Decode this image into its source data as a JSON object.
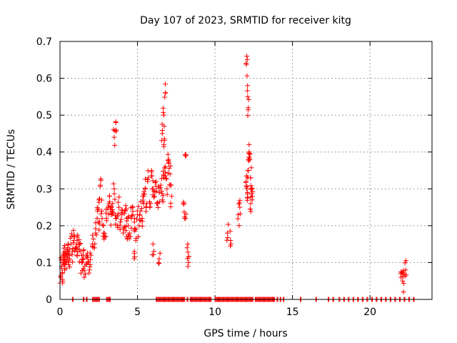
{
  "chart_data": {
    "type": "scatter",
    "title": "Day 107 of 2023, SRMTID for receiver kitg",
    "xlabel": "GPS time / hours",
    "ylabel": "SRMTID / TECUs",
    "xlim": [
      0,
      24
    ],
    "ylim": [
      0,
      0.7
    ],
    "xticks": [
      0,
      5,
      10,
      15,
      20
    ],
    "xtick_labels": [
      "0",
      "5",
      "10",
      "15",
      "20"
    ],
    "yticks": [
      0,
      0.1,
      0.2,
      0.3,
      0.4,
      0.5,
      0.6,
      0.7
    ],
    "ytick_labels": [
      "0",
      "0.1",
      "0.2",
      "0.3",
      "0.4",
      "0.5",
      "0.6",
      "0.7"
    ],
    "grid": true,
    "marker": "+",
    "series": [
      {
        "name": "SRMTID",
        "color": "#ff0000",
        "x": [
          0.05,
          0.1,
          0.15,
          0.2,
          0.25,
          0.3,
          0.35,
          0.4,
          0.45,
          0.5,
          0.55,
          0.6,
          0.7,
          0.8,
          0.9,
          1.0,
          1.1,
          1.2,
          1.3,
          1.4,
          1.5,
          1.6,
          1.7,
          1.8,
          1.9,
          2.0,
          2.1,
          2.2,
          2.3,
          2.4,
          2.5,
          2.6,
          2.7,
          2.8,
          2.9,
          3.0,
          3.1,
          3.2,
          3.3,
          3.4,
          3.5,
          3.6,
          3.7,
          3.8,
          3.9,
          4.0,
          4.1,
          4.2,
          4.3,
          4.4,
          4.5,
          4.6,
          4.7,
          4.8,
          4.9,
          5.0,
          5.1,
          5.2,
          5.3,
          5.4,
          5.5,
          5.6,
          5.7,
          5.8,
          5.9,
          6.0,
          6.1,
          6.2,
          6.3,
          6.4,
          6.5,
          6.6,
          6.7,
          6.8,
          6.9,
          7.0,
          7.1,
          7.2,
          8.0,
          8.1,
          8.2,
          8.3,
          10.8,
          11.0,
          11.5,
          11.6,
          12.0,
          12.05,
          12.1,
          12.15,
          12.2,
          12.25,
          12.3,
          12.35,
          12.4,
          22.0,
          22.1,
          22.2,
          22.3,
          3.5,
          3.6,
          6.7,
          6.8,
          12.05,
          12.1,
          12.15,
          12.2,
          6.6,
          6.7,
          0.3,
          0.6,
          1.1,
          1.5,
          2.5,
          3.3,
          4.3,
          4.8,
          5.4,
          6.0,
          6.4,
          7.0,
          8.1,
          12.3
        ],
        "y": [
          0.06,
          0.09,
          0.07,
          0.1,
          0.12,
          0.11,
          0.13,
          0.1,
          0.12,
          0.14,
          0.13,
          0.11,
          0.15,
          0.13,
          0.16,
          0.14,
          0.12,
          0.15,
          0.13,
          0.1,
          0.11,
          0.09,
          0.12,
          0.1,
          0.08,
          0.12,
          0.15,
          0.14,
          0.18,
          0.22,
          0.27,
          0.31,
          0.24,
          0.2,
          0.17,
          0.22,
          0.25,
          0.28,
          0.23,
          0.26,
          0.3,
          0.22,
          0.2,
          0.25,
          0.21,
          0.23,
          0.19,
          0.24,
          0.22,
          0.2,
          0.18,
          0.22,
          0.25,
          0.21,
          0.19,
          0.23,
          0.2,
          0.24,
          0.22,
          0.28,
          0.3,
          0.26,
          0.33,
          0.25,
          0.35,
          0.3,
          0.28,
          0.32,
          0.26,
          0.29,
          0.31,
          0.27,
          0.33,
          0.36,
          0.3,
          0.38,
          0.34,
          0.28,
          0.26,
          0.22,
          0.14,
          0.1,
          0.18,
          0.16,
          0.23,
          0.25,
          0.32,
          0.3,
          0.29,
          0.35,
          0.4,
          0.38,
          0.33,
          0.3,
          0.27,
          0.06,
          0.05,
          0.07,
          0.08,
          0.44,
          0.48,
          0.5,
          0.56,
          0.66,
          0.58,
          0.52,
          0.42,
          0.45,
          0.42,
          0.08,
          0.11,
          0.17,
          0.12,
          0.21,
          0.25,
          0.17,
          0.13,
          0.26,
          0.15,
          0.11,
          0.37,
          0.39,
          0.26
        ],
        "x_zero": [
          0.8,
          1.5,
          1.7,
          2.1,
          2.2,
          2.3,
          2.4,
          2.5,
          3.0,
          3.1,
          3.2,
          6.2,
          6.3,
          6.4,
          6.5,
          6.6,
          6.7,
          6.8,
          6.9,
          7.0,
          7.1,
          7.2,
          7.3,
          7.4,
          7.5,
          7.6,
          7.7,
          7.8,
          7.9,
          8.0,
          8.2,
          8.4,
          8.5,
          8.6,
          8.7,
          8.8,
          8.9,
          9.0,
          9.1,
          9.2,
          9.3,
          9.4,
          9.5,
          9.6,
          9.7,
          10.0,
          10.1,
          10.2,
          10.3,
          10.4,
          10.5,
          10.6,
          10.7,
          10.8,
          10.9,
          11.0,
          11.1,
          11.2,
          11.3,
          11.4,
          11.5,
          11.6,
          11.7,
          11.8,
          11.9,
          12.0,
          12.1,
          12.2,
          12.3,
          12.4,
          12.6,
          12.7,
          12.8,
          12.9,
          13.0,
          13.1,
          13.2,
          13.3,
          13.4,
          13.5,
          13.6,
          13.7,
          13.8,
          14.0,
          14.2,
          14.4,
          15.5,
          16.5,
          17.3,
          17.6,
          18.0,
          18.3,
          18.6,
          18.9,
          19.2,
          19.5,
          19.8,
          20.1,
          20.4,
          20.7,
          21.0,
          21.3,
          21.6,
          21.9,
          22.2,
          22.5,
          22.8
        ]
      }
    ]
  }
}
